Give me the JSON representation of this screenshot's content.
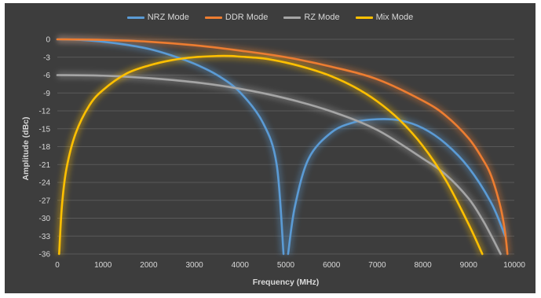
{
  "chart_data": {
    "type": "line",
    "xlabel": "Frequency (MHz)",
    "ylabel": "Amplitude (dBc)",
    "xlim": [
      0,
      10000
    ],
    "ylim": [
      -36,
      0
    ],
    "x_ticks": [
      0,
      1000,
      2000,
      3000,
      4000,
      5000,
      6000,
      7000,
      8000,
      9000,
      10000
    ],
    "y_ticks": [
      0,
      -3,
      -6,
      -9,
      -12,
      -15,
      -18,
      -21,
      -24,
      -27,
      -30,
      -33,
      -36
    ],
    "grid": true,
    "legend_position": "top-center",
    "series": [
      {
        "name": "NRZ Mode",
        "color": "#5b9bd5",
        "x": [
          0,
          500,
          1000,
          1500,
          2000,
          2500,
          3000,
          3500,
          4000,
          4500,
          4800,
          4950,
          5050,
          5200,
          5500,
          6000,
          6500,
          7000,
          7500,
          8000,
          8500,
          9000,
          9500,
          9800
        ],
        "y": [
          0,
          -0.1,
          -0.4,
          -0.9,
          -1.6,
          -2.7,
          -4.1,
          -6.0,
          -8.9,
          -14.0,
          -21.0,
          -36.0,
          -36.0,
          -28.0,
          -20.0,
          -15.6,
          -13.9,
          -13.4,
          -13.6,
          -14.9,
          -17.5,
          -21.5,
          -27.5,
          -33.0
        ]
      },
      {
        "name": "DDR Mode",
        "color": "#ed7d31",
        "x": [
          0,
          1000,
          2000,
          3000,
          4000,
          5000,
          6000,
          7000,
          8000,
          8500,
          9000,
          9300,
          9500,
          9700,
          9800,
          9850
        ],
        "y": [
          0,
          -0.1,
          -0.4,
          -1.0,
          -1.9,
          -3.0,
          -4.6,
          -6.7,
          -10.3,
          -12.8,
          -16.6,
          -20.0,
          -23.0,
          -28.2,
          -32.5,
          -36.0
        ]
      },
      {
        "name": "RZ Mode",
        "color": "#a5a5a5",
        "x": [
          0,
          1000,
          2000,
          3000,
          4000,
          5000,
          6000,
          7000,
          8000,
          8500,
          9000,
          9300,
          9500,
          9700
        ],
        "y": [
          -6.0,
          -6.1,
          -6.5,
          -7.2,
          -8.3,
          -9.9,
          -12.1,
          -15.2,
          -20.0,
          -22.7,
          -26.7,
          -30.2,
          -33.0,
          -36.0
        ]
      },
      {
        "name": "Mix Mode",
        "color": "#ffc000",
        "x": [
          40,
          100,
          200,
          400,
          700,
          1000,
          1500,
          2000,
          2500,
          3000,
          3500,
          3800,
          4000,
          4500,
          5000,
          5500,
          6000,
          6500,
          7000,
          7500,
          8000,
          8500,
          9000,
          9300
        ],
        "y": [
          -36.0,
          -28.0,
          -21.7,
          -15.8,
          -11.1,
          -8.5,
          -5.8,
          -4.4,
          -3.5,
          -3.0,
          -2.8,
          -2.8,
          -2.9,
          -3.2,
          -3.9,
          -4.9,
          -6.2,
          -8.0,
          -10.4,
          -13.6,
          -17.9,
          -23.6,
          -31.0,
          -36.0
        ]
      }
    ]
  }
}
